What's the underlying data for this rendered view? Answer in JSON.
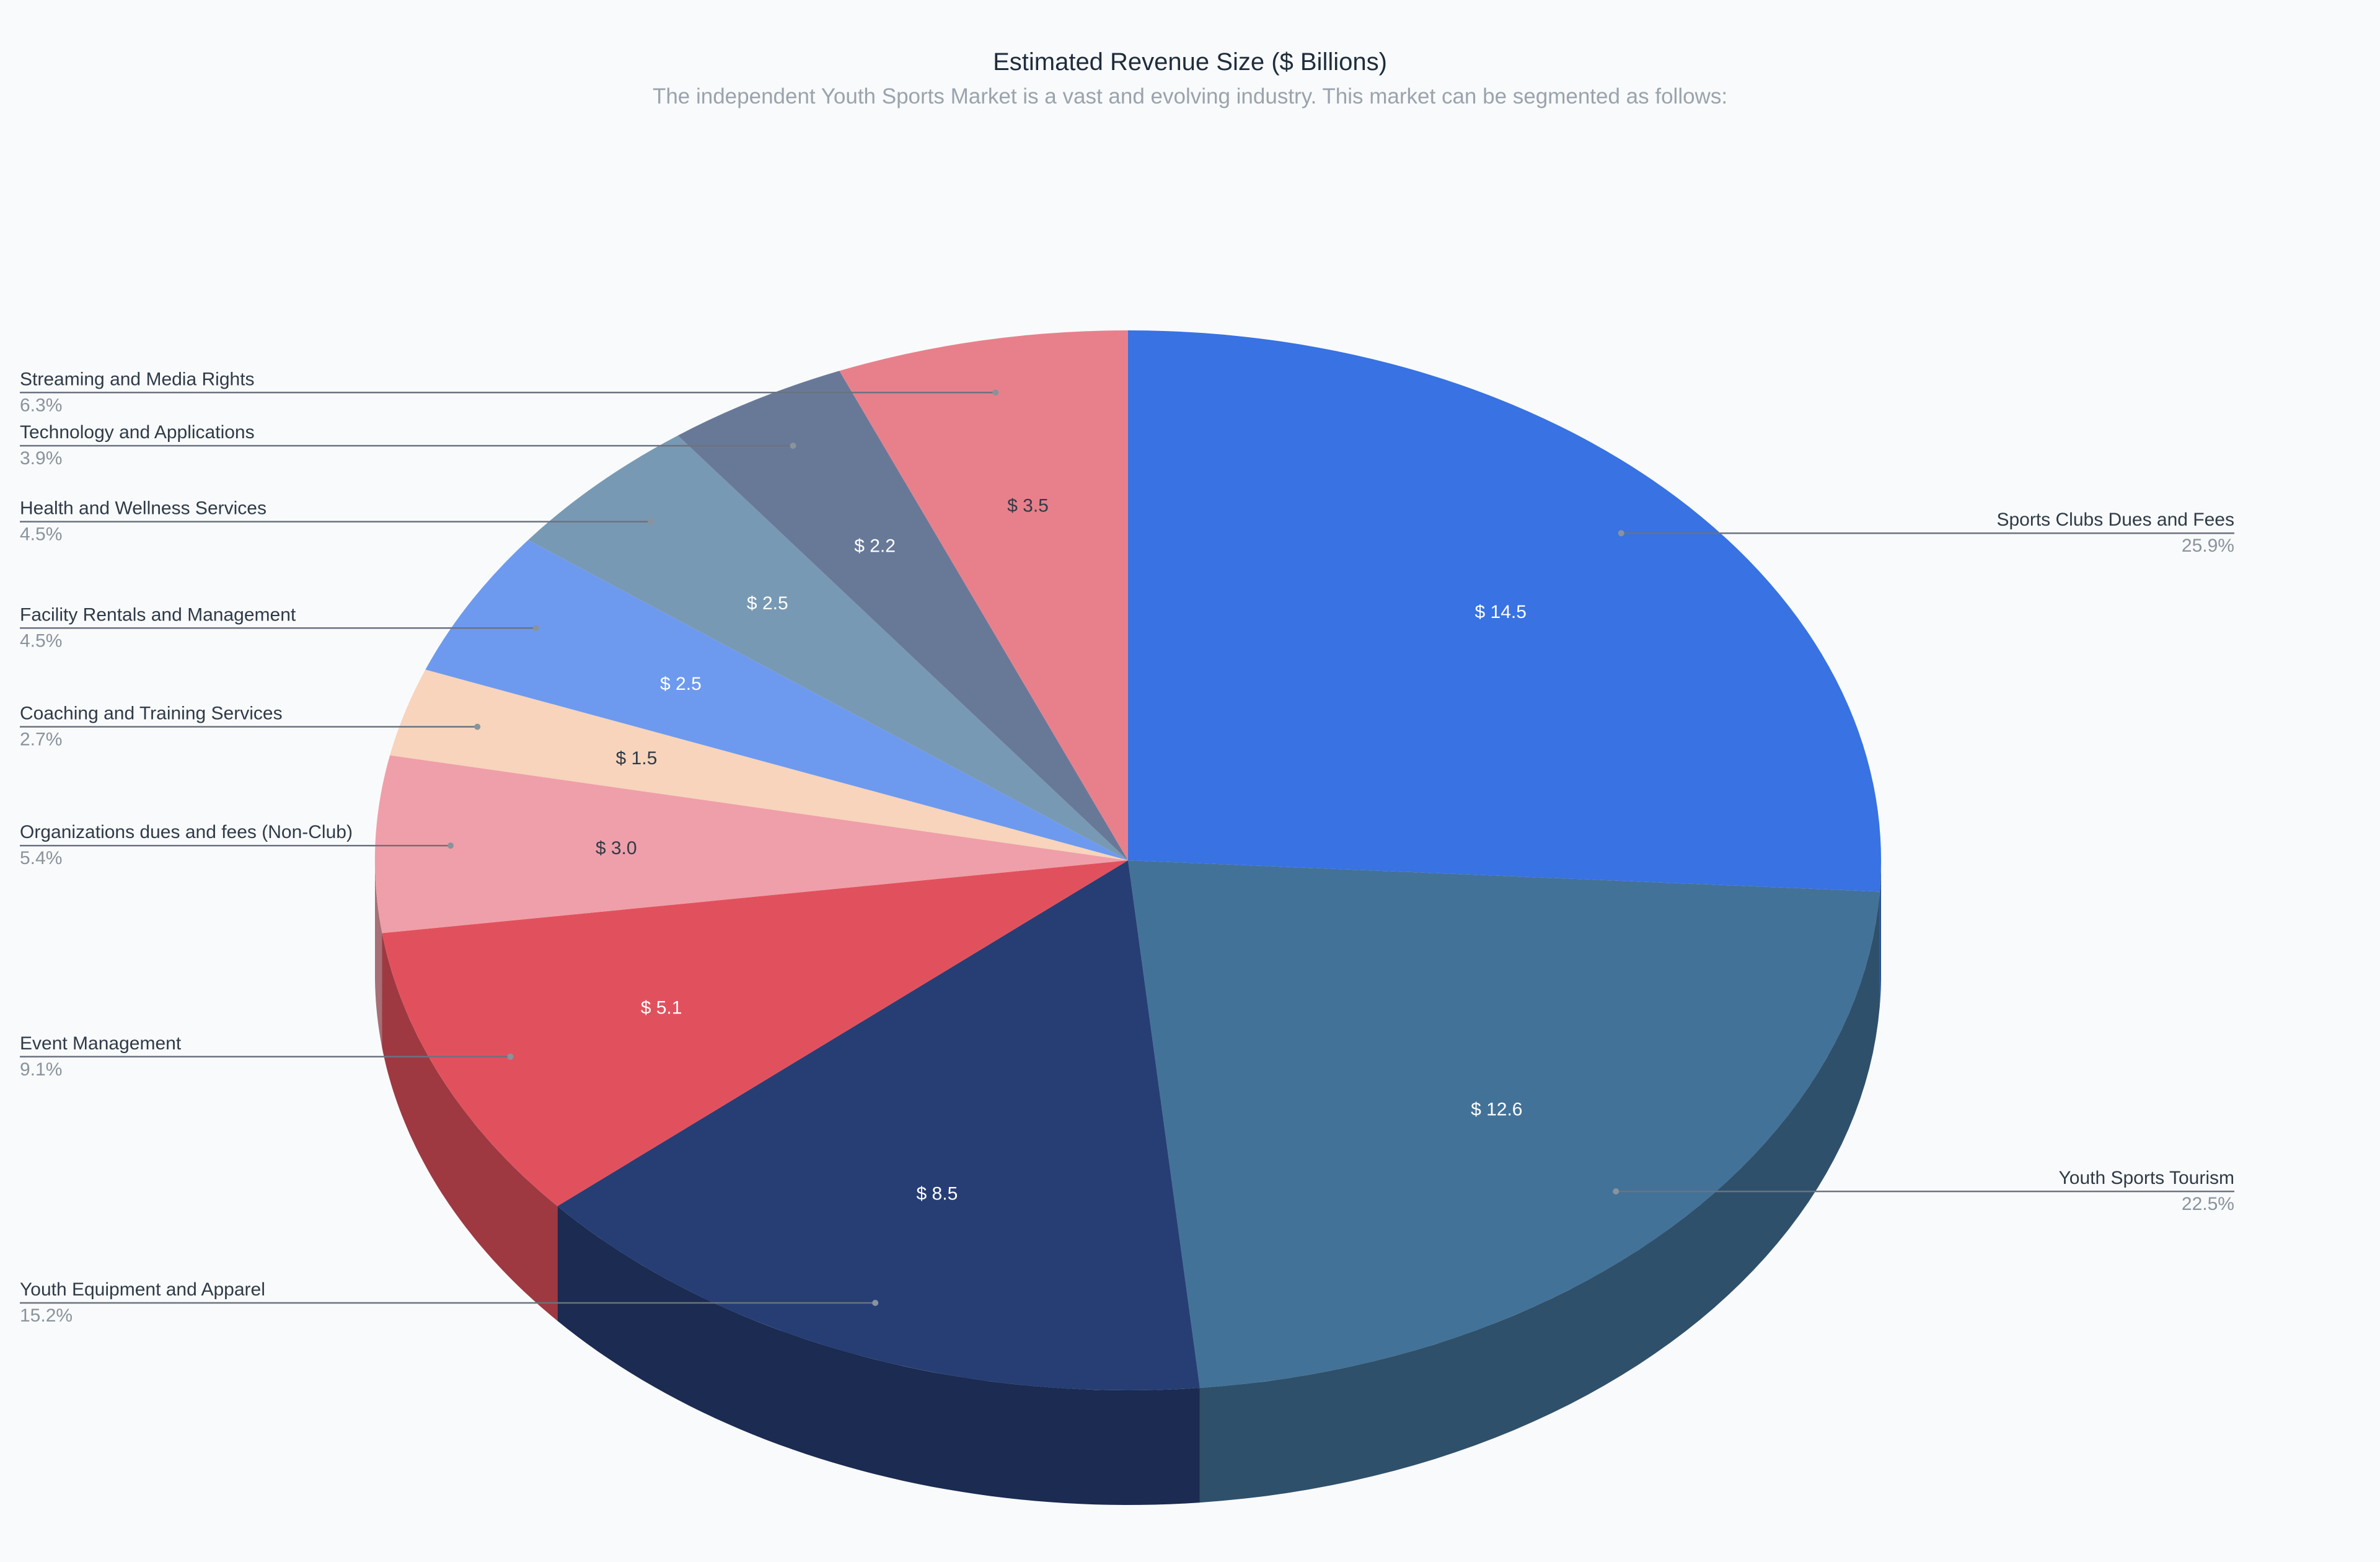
{
  "chart_data": {
    "type": "pie",
    "title": "Estimated Revenue Size ($ Billions)",
    "subtitle": "The independent Youth Sports Market is a vast and evolving industry. This market can be segmented as follows:",
    "value_prefix": "$ ",
    "three_d": true,
    "slices": [
      {
        "name": "Sports Clubs Dues and Fees",
        "value": 14.5,
        "value_label": "$ 14.5",
        "percent": "25.9%",
        "color": "#3872e3",
        "label_color": "#ffffff",
        "label_side": "right"
      },
      {
        "name": "Youth Sports Tourism",
        "value": 12.6,
        "value_label": "$ 12.6",
        "percent": "22.5%",
        "color": "#437298",
        "label_color": "#ffffff",
        "label_side": "right"
      },
      {
        "name": "Youth Equipment and Apparel",
        "value": 8.5,
        "value_label": "$ 8.5",
        "percent": "15.2%",
        "color": "#273e74",
        "label_color": "#ffffff",
        "label_side": "left"
      },
      {
        "name": "Event Management",
        "value": 5.1,
        "value_label": "$ 5.1",
        "percent": "9.1%",
        "color": "#e1515d",
        "label_color": "#ffffff",
        "label_side": "left"
      },
      {
        "name": "Organizations dues and fees (Non-Club)",
        "value": 3.0,
        "value_label": "$ 3.0",
        "percent": "5.4%",
        "color": "#ef9fa9",
        "label_color": "#2f3b48",
        "label_side": "left"
      },
      {
        "name": "Coaching and Training Services",
        "value": 1.5,
        "value_label": "$ 1.5",
        "percent": "2.7%",
        "color": "#f7d4bb",
        "label_color": "#2f3b48",
        "label_side": "left"
      },
      {
        "name": "Facility Rentals and Management",
        "value": 2.5,
        "value_label": "$ 2.5",
        "percent": "4.5%",
        "color": "#6d9aef",
        "label_color": "#ffffff",
        "label_side": "left"
      },
      {
        "name": "Health and Wellness Services",
        "value": 2.5,
        "value_label": "$ 2.5",
        "percent": "4.5%",
        "color": "#7899b3",
        "label_color": "#ffffff",
        "label_side": "left"
      },
      {
        "name": "Technology and Applications",
        "value": 2.2,
        "value_label": "$ 2.2",
        "percent": "3.9%",
        "color": "#687998",
        "label_color": "#ffffff",
        "label_side": "left"
      },
      {
        "name": "Streaming and Media Rights",
        "value": 3.5,
        "value_label": "$ 3.5",
        "percent": "6.3%",
        "color": "#e8808b",
        "label_color": "#2f3b48",
        "label_side": "left"
      }
    ]
  }
}
